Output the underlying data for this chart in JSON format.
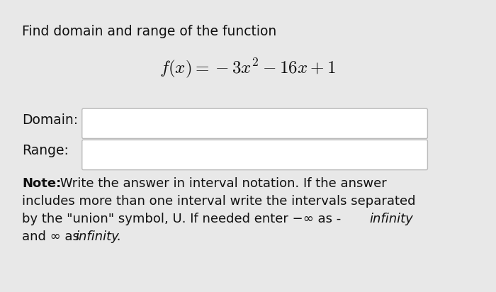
{
  "bg_color": "#e8e8e8",
  "card_color": "#f0f0f0",
  "white": "#ffffff",
  "border_color": "#bbbbbb",
  "text_color": "#111111",
  "title_text": "Find domain and range of the function",
  "formula": "$f(x) = -3x^2 - 16x + 1$",
  "domain_label": "Domain:",
  "range_label": "Range:",
  "note_bold": "Note:",
  "note_line1": " Write the answer in interval notation. If the answer",
  "note_line2": "includes more than one interval write the intervals separated",
  "note_line3a": "by the \"union\" symbol, U. If needed enter −∞ as - ",
  "note_line3b": "infinity",
  "note_line4a": "and ∞ as ",
  "note_line4b": "infinity",
  "note_line4c": " .",
  "title_fontsize": 13.5,
  "formula_fontsize": 18,
  "label_fontsize": 13.5,
  "note_fontsize": 13.0,
  "fig_width": 7.0,
  "fig_height": 4.12,
  "dpi": 100
}
